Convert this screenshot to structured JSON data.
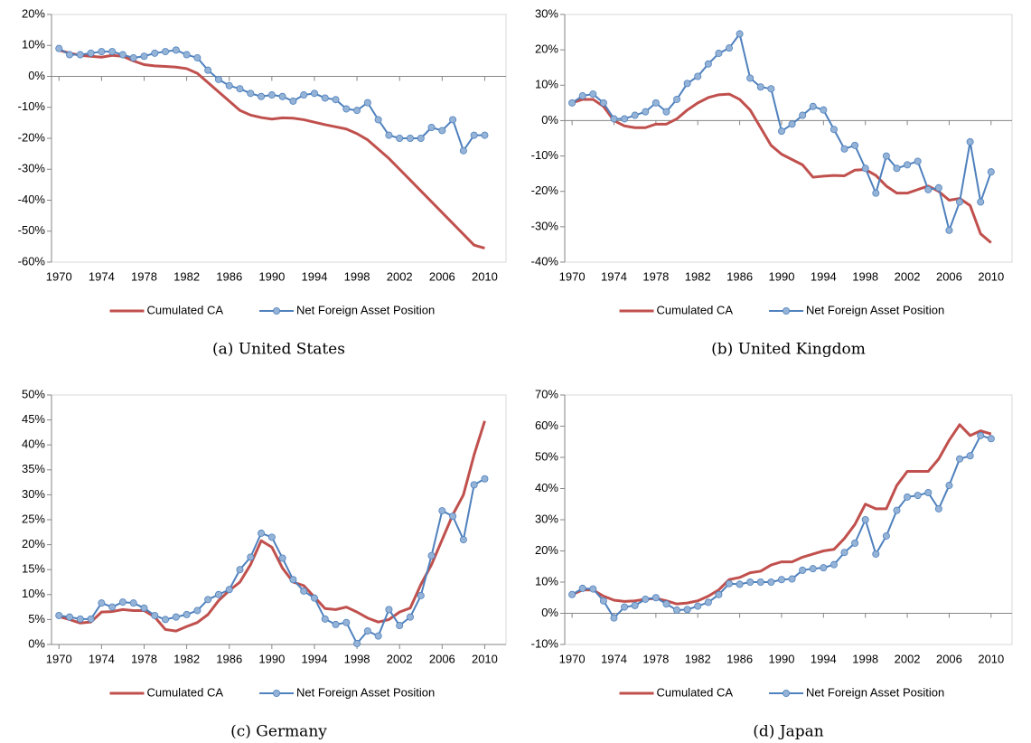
{
  "chart_data": [
    {
      "type": "line",
      "caption": "(a) United States",
      "x": [
        1970,
        1971,
        1972,
        1973,
        1974,
        1975,
        1976,
        1977,
        1978,
        1979,
        1980,
        1981,
        1982,
        1983,
        1984,
        1985,
        1986,
        1987,
        1988,
        1989,
        1990,
        1991,
        1992,
        1993,
        1994,
        1995,
        1996,
        1997,
        1998,
        1999,
        2000,
        2001,
        2002,
        2003,
        2004,
        2005,
        2006,
        2007,
        2008,
        2009,
        2010
      ],
      "xlim": [
        1969.3,
        2012
      ],
      "xticks": [
        1970,
        1974,
        1978,
        1982,
        1986,
        1990,
        1994,
        1998,
        2002,
        2006,
        2010
      ],
      "ylim": [
        -60,
        20
      ],
      "yticks": [
        {
          "value": -60,
          "label": "-60%"
        },
        {
          "value": -50,
          "label": "-50%"
        },
        {
          "value": -40,
          "label": "-40%"
        },
        {
          "value": -30,
          "label": "-30%"
        },
        {
          "value": -20,
          "label": "-20%"
        },
        {
          "value": -10,
          "label": "-10%"
        },
        {
          "value": 0,
          "label": "0%"
        },
        {
          "value": 10,
          "label": "10%"
        },
        {
          "value": 20,
          "label": "20%"
        }
      ],
      "series": [
        {
          "name": "Cumulated CA",
          "color": "#c0504d",
          "values": [
            8.5,
            7.5,
            6.8,
            6.5,
            6.2,
            6.8,
            6.5,
            5,
            3.8,
            3.4,
            3.2,
            3,
            2.5,
            1,
            -2,
            -5,
            -8,
            -11,
            -12.5,
            -13.3,
            -13.8,
            -13.4,
            -13.5,
            -14,
            -14.8,
            -15.6,
            -16.3,
            -17,
            -18.5,
            -20.5,
            -23.5,
            -26.5,
            -30,
            -33.5,
            -37,
            -40.5,
            -44,
            -47.5,
            -51,
            -54.5,
            -55.5
          ]
        },
        {
          "name": "Net Foreign Asset Position",
          "color": "#4f81bd",
          "marker": true,
          "values": [
            9,
            7,
            7,
            7.5,
            8,
            8,
            7,
            6,
            6.5,
            7.5,
            8,
            8.5,
            7,
            6,
            2,
            -1,
            -3,
            -4,
            -5.5,
            -6.5,
            -6,
            -6.5,
            -8,
            -6,
            -5.5,
            -7,
            -7.5,
            -10.5,
            -11,
            -8.5,
            -14,
            -19,
            -20,
            -20,
            -20,
            -16.5,
            -17.5,
            -14,
            -24,
            -19,
            -19
          ]
        }
      ]
    },
    {
      "type": "line",
      "caption": "(b) United Kingdom",
      "x": [
        1970,
        1971,
        1972,
        1973,
        1974,
        1975,
        1976,
        1977,
        1978,
        1979,
        1980,
        1981,
        1982,
        1983,
        1984,
        1985,
        1986,
        1987,
        1988,
        1989,
        1990,
        1991,
        1992,
        1993,
        1994,
        1995,
        1996,
        1997,
        1998,
        1999,
        2000,
        2001,
        2002,
        2003,
        2004,
        2005,
        2006,
        2007,
        2008,
        2009,
        2010
      ],
      "xlim": [
        1969.3,
        2012
      ],
      "xticks": [
        1970,
        1974,
        1978,
        1982,
        1986,
        1990,
        1994,
        1998,
        2002,
        2006,
        2010
      ],
      "ylim": [
        -40,
        30
      ],
      "yticks": [
        {
          "value": -40,
          "label": "-40%"
        },
        {
          "value": -30,
          "label": "-30%"
        },
        {
          "value": -20,
          "label": "-20%"
        },
        {
          "value": -10,
          "label": "-10%"
        },
        {
          "value": 0,
          "label": "0%"
        },
        {
          "value": 10,
          "label": "10%"
        },
        {
          "value": 20,
          "label": "20%"
        },
        {
          "value": 30,
          "label": "30%"
        }
      ],
      "series": [
        {
          "name": "Cumulated CA",
          "color": "#c0504d",
          "values": [
            5,
            6,
            6,
            4,
            0,
            -1.5,
            -2,
            -2,
            -1,
            -1,
            0.5,
            3,
            5,
            6.5,
            7.3,
            7.5,
            6,
            3,
            -2,
            -7,
            -9.5,
            -11,
            -12.5,
            -16,
            -15.7,
            -15.5,
            -15.6,
            -14,
            -13.8,
            -15.5,
            -18.5,
            -20.5,
            -20.5,
            -19.5,
            -18.5,
            -20,
            -22.5,
            -22,
            -24,
            -32,
            -34.5
          ]
        },
        {
          "name": "Net Foreign Asset Position",
          "color": "#4f81bd",
          "marker": true,
          "values": [
            5,
            7,
            7.5,
            5,
            0.5,
            0.5,
            1.5,
            2.5,
            5,
            2.5,
            6,
            10.5,
            12.5,
            16,
            19,
            20.5,
            24.5,
            12,
            9.5,
            9,
            -3,
            -1,
            1.5,
            4,
            3,
            -2.5,
            -8,
            -7,
            -13.5,
            -20.5,
            -10,
            -13.5,
            -12.5,
            -11.5,
            -19.5,
            -19,
            -31,
            -23,
            -6,
            -23,
            -14.5
          ]
        }
      ]
    },
    {
      "type": "line",
      "caption": "(c) Germany",
      "x": [
        1970,
        1971,
        1972,
        1973,
        1974,
        1975,
        1976,
        1977,
        1978,
        1979,
        1980,
        1981,
        1982,
        1983,
        1984,
        1985,
        1986,
        1987,
        1988,
        1989,
        1990,
        1991,
        1992,
        1993,
        1994,
        1995,
        1996,
        1997,
        1998,
        1999,
        2000,
        2001,
        2002,
        2003,
        2004,
        2005,
        2006,
        2007,
        2008,
        2009,
        2010
      ],
      "xlim": [
        1969.3,
        2012
      ],
      "xticks": [
        1970,
        1974,
        1978,
        1982,
        1986,
        1990,
        1994,
        1998,
        2002,
        2006,
        2010
      ],
      "ylim": [
        0,
        50
      ],
      "yticks": [
        {
          "value": 0,
          "label": "0%"
        },
        {
          "value": 5,
          "label": "5%"
        },
        {
          "value": 10,
          "label": "10%"
        },
        {
          "value": 15,
          "label": "15%"
        },
        {
          "value": 20,
          "label": "20%"
        },
        {
          "value": 25,
          "label": "25%"
        },
        {
          "value": 30,
          "label": "30%"
        },
        {
          "value": 35,
          "label": "35%"
        },
        {
          "value": 40,
          "label": "40%"
        },
        {
          "value": 45,
          "label": "45%"
        },
        {
          "value": 50,
          "label": "50%"
        }
      ],
      "series": [
        {
          "name": "Cumulated CA",
          "color": "#c0504d",
          "values": [
            5.6,
            5,
            4.3,
            4.5,
            6.5,
            6.6,
            7,
            6.8,
            6.8,
            5.5,
            3,
            2.7,
            3.6,
            4.4,
            6,
            8.8,
            10.8,
            12.5,
            16,
            20.8,
            19.5,
            15.3,
            12.5,
            11.8,
            9.5,
            7.2,
            7,
            7.5,
            6.5,
            5.3,
            4.5,
            5,
            6.5,
            7.3,
            12,
            16,
            21,
            26,
            30,
            38,
            44.8
          ]
        },
        {
          "name": "Net Foreign Asset Position",
          "color": "#4f81bd",
          "marker": true,
          "values": [
            5.8,
            5.5,
            5.1,
            5.1,
            8.3,
            7.5,
            8.5,
            8.3,
            7.3,
            5.8,
            5,
            5.5,
            6,
            6.8,
            9,
            10,
            11,
            15,
            17.5,
            22.3,
            21.5,
            17.3,
            13,
            10.7,
            9.3,
            5.1,
            4,
            4.4,
            0.2,
            2.7,
            1.7,
            7,
            3.8,
            5.5,
            9.8,
            17.8,
            26.8,
            25.7,
            21,
            32,
            33.2
          ]
        }
      ]
    },
    {
      "type": "line",
      "caption": "(d) Japan",
      "x": [
        1970,
        1971,
        1972,
        1973,
        1974,
        1975,
        1976,
        1977,
        1978,
        1979,
        1980,
        1981,
        1982,
        1983,
        1984,
        1985,
        1986,
        1987,
        1988,
        1989,
        1990,
        1991,
        1992,
        1993,
        1994,
        1995,
        1996,
        1997,
        1998,
        1999,
        2000,
        2001,
        2002,
        2003,
        2004,
        2005,
        2006,
        2007,
        2008,
        2009,
        2010
      ],
      "xlim": [
        1969.3,
        2012
      ],
      "xticks": [
        1970,
        1974,
        1978,
        1982,
        1986,
        1990,
        1994,
        1998,
        2002,
        2006,
        2010
      ],
      "ylim": [
        -10,
        70
      ],
      "yticks": [
        {
          "value": -10,
          "label": "-10%"
        },
        {
          "value": 0,
          "label": "0%"
        },
        {
          "value": 10,
          "label": "10%"
        },
        {
          "value": 20,
          "label": "20%"
        },
        {
          "value": 30,
          "label": "30%"
        },
        {
          "value": 40,
          "label": "40%"
        },
        {
          "value": 50,
          "label": "50%"
        },
        {
          "value": 60,
          "label": "60%"
        },
        {
          "value": 70,
          "label": "70%"
        }
      ],
      "series": [
        {
          "name": "Cumulated CA",
          "color": "#c0504d",
          "values": [
            6,
            7.5,
            7.5,
            5.5,
            4.2,
            3.8,
            4,
            4.5,
            4.8,
            4,
            3,
            3.3,
            4,
            5.5,
            7.5,
            10.8,
            11.5,
            13,
            13.5,
            15.5,
            16.5,
            16.5,
            18,
            19,
            20,
            20.5,
            24,
            28.5,
            35,
            33.5,
            33.5,
            41,
            45.5,
            45.5,
            45.5,
            49.5,
            55.5,
            60.5,
            57,
            58.5,
            57.5
          ]
        },
        {
          "name": "Net Foreign Asset Position",
          "color": "#4f81bd",
          "marker": true,
          "values": [
            6,
            8,
            7.8,
            4,
            -1.5,
            2,
            2.5,
            4.5,
            5,
            3,
            1,
            1.2,
            2.3,
            3.5,
            6,
            9.5,
            9.3,
            10,
            10,
            10,
            10.8,
            11,
            13.8,
            14.3,
            14.6,
            15.6,
            19.5,
            22.5,
            30,
            19,
            24.8,
            33,
            37.3,
            37.8,
            38.7,
            33.5,
            41,
            49.5,
            50.5,
            57,
            56
          ]
        }
      ]
    }
  ]
}
